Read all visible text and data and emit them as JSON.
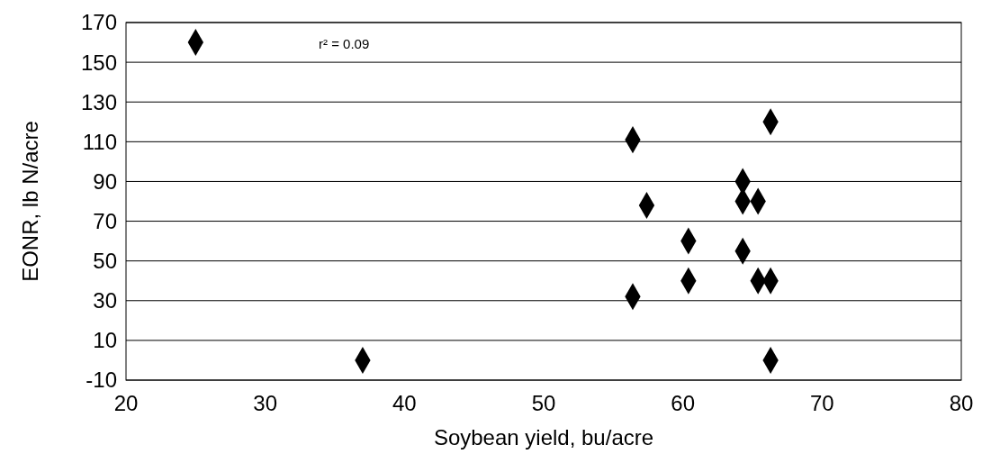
{
  "chart_data": {
    "type": "scatter",
    "xlabel": "Soybean yield, bu/acre",
    "ylabel": "EONR, lb N/acre",
    "x": [
      25,
      37,
      56.4,
      56.4,
      57.4,
      60.4,
      60.4,
      64.3,
      64.3,
      64.3,
      65.4,
      65.4,
      66.3,
      66.3,
      66.3
    ],
    "values": [
      160,
      0,
      111,
      32,
      78,
      60,
      40,
      90,
      80,
      55,
      80,
      40,
      120,
      40,
      0
    ],
    "color": "#000000",
    "marker": "diamond",
    "xlim": [
      20,
      80
    ],
    "xticks": [
      20,
      30,
      40,
      50,
      60,
      70,
      80
    ],
    "ylim": [
      -10,
      170
    ],
    "yticks": [
      -10,
      10,
      30,
      50,
      70,
      90,
      110,
      130,
      150,
      170
    ],
    "grid": "y",
    "annotations": [
      "r² = 0.09"
    ]
  }
}
